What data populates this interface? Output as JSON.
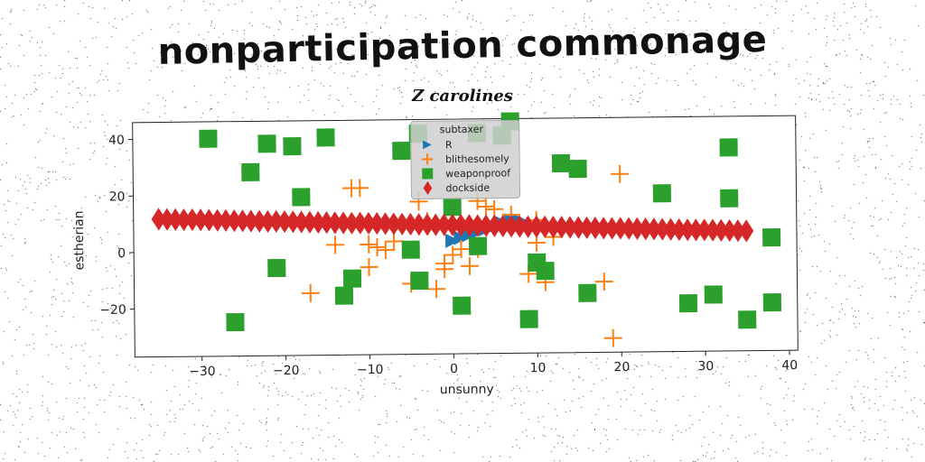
{
  "page": {
    "title": "nonparticipation commonage",
    "subtitle": "Z carolines"
  },
  "colors": {
    "R": "#1f77b4",
    "blithesomely": "#ff7f0e",
    "weaponproof": "#2ca02c",
    "dockside": "#d62728"
  },
  "chart_data": {
    "type": "scatter",
    "xlabel": "unsunny",
    "ylabel": "estherian",
    "xlim": [
      -38,
      41
    ],
    "ylim": [
      -37,
      46
    ],
    "xticks": [
      -30,
      -20,
      -10,
      0,
      10,
      20,
      30,
      40
    ],
    "yticks": [
      -20,
      0,
      20,
      40
    ],
    "grid": false,
    "legend": {
      "title": "subtaxer",
      "placement": "top-center"
    },
    "series": [
      {
        "name": "R",
        "marker": "triangle-right",
        "x": [
          0,
          1,
          2,
          3,
          4,
          5,
          6,
          7,
          8
        ],
        "y": [
          3,
          4,
          5,
          6,
          7,
          8,
          9,
          10,
          10
        ]
      },
      {
        "name": "blithesomely",
        "marker": "plus",
        "x": [
          -17,
          -12,
          -11,
          -10,
          -10,
          -9,
          -8,
          -7,
          -5,
          -4,
          -3,
          -2,
          -1,
          -1,
          0,
          0,
          1,
          2,
          3,
          3,
          4,
          5,
          6,
          7,
          8,
          9,
          10,
          11,
          12,
          18,
          19,
          20,
          -14,
          -1,
          10
        ],
        "y": [
          -15,
          22,
          22,
          2,
          -6,
          1,
          0,
          3,
          -12,
          17,
          10,
          -14,
          -7,
          -5,
          10,
          -2,
          0,
          -6,
          0,
          17,
          15,
          14,
          8,
          12,
          8,
          -9,
          2,
          -12,
          4,
          -12,
          -32,
          26,
          2,
          8,
          10
        ]
      },
      {
        "name": "weaponproof",
        "marker": "square",
        "x": [
          -29,
          -26,
          -24,
          -22,
          -19,
          -18,
          -15,
          -13,
          -12,
          -6,
          -5,
          -4,
          0,
          1,
          3,
          3,
          7,
          9,
          10,
          11,
          13,
          15,
          16,
          25,
          28,
          31,
          33,
          33,
          35,
          38,
          38,
          -21,
          6,
          -4
        ],
        "y": [
          40,
          -25,
          28,
          38,
          37,
          19,
          40,
          -16,
          -10,
          35,
          0,
          -11,
          15,
          -20,
          1,
          41,
          45,
          -25,
          -5,
          -8,
          30,
          28,
          -16,
          19,
          -20,
          -17,
          17,
          35,
          -26,
          3,
          -20,
          -6,
          40,
          41
        ]
      },
      {
        "name": "dockside",
        "marker": "diamond",
        "x": [
          -35,
          -34,
          -33,
          -32,
          -31,
          -30,
          -29,
          -28,
          -27,
          -26,
          -25,
          -24,
          -23,
          -22,
          -21,
          -20,
          -19,
          -18,
          -17,
          -16,
          -15,
          -14,
          -13,
          -12,
          -11,
          -10,
          -9,
          -8,
          -7,
          -6,
          -5,
          -4,
          -3,
          -2,
          -1,
          0,
          1,
          2,
          3,
          4,
          5,
          6,
          7,
          8,
          9,
          10,
          11,
          12,
          13,
          14,
          15,
          16,
          17,
          18,
          19,
          20,
          21,
          22,
          23,
          24,
          25,
          26,
          27,
          28,
          29,
          30,
          31,
          32,
          33,
          34,
          35
        ],
        "y": [
          11.7,
          11.6,
          11.5,
          11.4,
          11.4,
          11.3,
          11.2,
          11.1,
          11,
          10.9,
          10.8,
          10.7,
          10.6,
          10.5,
          10.5,
          10.4,
          10.3,
          10.2,
          10.1,
          10,
          9.9,
          9.8,
          9.7,
          9.6,
          9.6,
          9.5,
          9.4,
          9.3,
          9.2,
          9.1,
          9,
          8.9,
          8.8,
          8.7,
          8.7,
          8.6,
          8.5,
          8.4,
          8.3,
          8.2,
          8.1,
          8,
          7.9,
          7.8,
          7.7,
          7.7,
          7.6,
          7.5,
          7.4,
          7.3,
          7.2,
          7.1,
          7,
          6.9,
          6.8,
          6.8,
          6.7,
          6.6,
          6.5,
          6.4,
          6.3,
          6.2,
          6.1,
          6,
          5.9,
          5.9,
          5.8,
          5.7,
          5.6,
          5.5,
          5.4
        ]
      }
    ]
  }
}
